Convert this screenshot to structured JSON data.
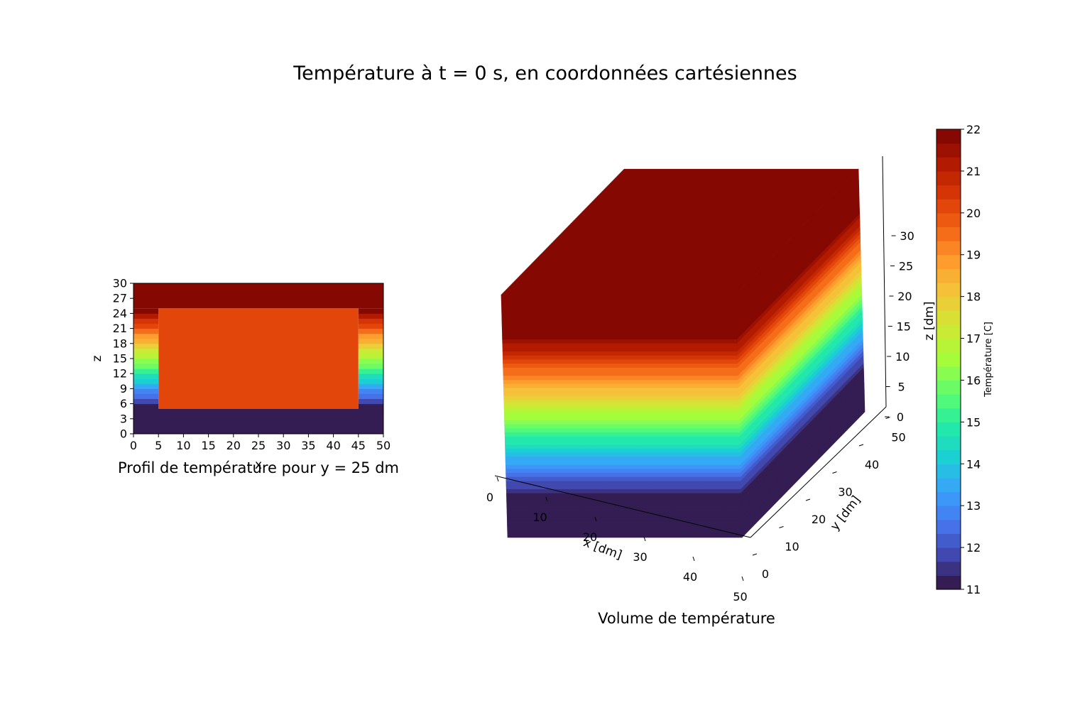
{
  "figure": {
    "title": "Température à t = 0 s, en coordonnées cartésiennes"
  },
  "chart_data": [
    {
      "type": "heatmap",
      "subtitle": "Profil de température pour y = 25 dm",
      "xlabel": "x",
      "ylabel": "z",
      "xlim": [
        0,
        50
      ],
      "ylim": [
        0,
        30
      ],
      "xticks": [
        "0",
        "5",
        "10",
        "15",
        "20",
        "25",
        "30",
        "35",
        "40",
        "45",
        "50"
      ],
      "yticks": [
        "0",
        "3",
        "6",
        "9",
        "12",
        "15",
        "18",
        "21",
        "24",
        "27",
        "30"
      ],
      "regions": [
        {
          "name": "bottom",
          "x": [
            0,
            50
          ],
          "z": [
            0,
            5
          ],
          "value": 11
        },
        {
          "name": "top",
          "x": [
            0,
            50
          ],
          "z": [
            25,
            30
          ],
          "value": 22
        },
        {
          "name": "interior",
          "x": [
            5,
            45
          ],
          "z": [
            5,
            25
          ],
          "value": 20
        },
        {
          "name": "left-wall",
          "x": [
            0,
            5
          ],
          "z": [
            5,
            25
          ],
          "profile": "linear",
          "value_range": [
            11,
            22
          ]
        },
        {
          "name": "right-wall",
          "x": [
            45,
            50
          ],
          "z": [
            5,
            25
          ],
          "profile": "linear",
          "value_range": [
            11,
            22
          ]
        }
      ]
    },
    {
      "type": "volume-3d",
      "subtitle": "Volume de température",
      "xlabel": "x [dm]",
      "ylabel": "y [dm]",
      "zlabel": "z [dm]",
      "xlim": [
        0,
        50
      ],
      "ylim": [
        0,
        50
      ],
      "zlim": [
        0,
        30
      ],
      "xticks": [
        "0",
        "10",
        "20",
        "30",
        "40",
        "50"
      ],
      "yticks": [
        "0",
        "10",
        "20",
        "30",
        "40",
        "50"
      ],
      "zticks": [
        "0",
        "5",
        "10",
        "15",
        "20",
        "25",
        "30"
      ],
      "layers": [
        {
          "z": [
            0,
            5
          ],
          "value": 11
        },
        {
          "z": [
            5,
            25
          ],
          "profile": "linear",
          "value_range": [
            11,
            22
          ]
        },
        {
          "z": [
            25,
            30
          ],
          "value": 22
        }
      ]
    }
  ],
  "colorbar": {
    "label": "Température [C]",
    "min": 11,
    "max": 22,
    "levels": 33,
    "ticks": [
      "11",
      "12",
      "13",
      "14",
      "15",
      "16",
      "17",
      "18",
      "19",
      "20",
      "21",
      "22"
    ],
    "colormap": "turbo",
    "colors": [
      "#30123b",
      "#4145ab",
      "#4675ed",
      "#39a2fc",
      "#1bcfd4",
      "#24eca6",
      "#61fc6c",
      "#a4fc3b",
      "#d1e834",
      "#f3c63a",
      "#fe9b2d",
      "#f36315",
      "#d93806",
      "#b11901",
      "#7a0403"
    ]
  }
}
